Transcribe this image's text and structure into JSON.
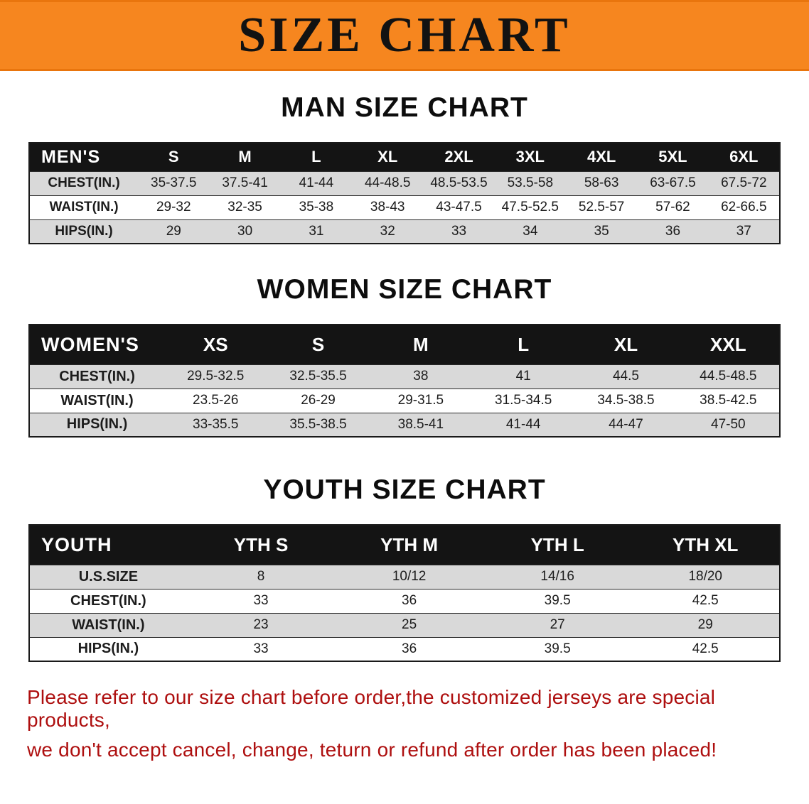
{
  "banner": {
    "title": "SIZE CHART"
  },
  "sections": {
    "men": {
      "heading": "MAN SIZE CHART",
      "table": {
        "header": [
          "MEN'S",
          "S",
          "M",
          "L",
          "XL",
          "2XL",
          "3XL",
          "4XL",
          "5XL",
          "6XL"
        ],
        "rows": [
          {
            "label": "CHEST(IN.)",
            "values": [
              "35-37.5",
              "37.5-41",
              "41-44",
              "44-48.5",
              "48.5-53.5",
              "53.5-58",
              "58-63",
              "63-67.5",
              "67.5-72"
            ]
          },
          {
            "label": "WAIST(IN.)",
            "values": [
              "29-32",
              "32-35",
              "35-38",
              "38-43",
              "43-47.5",
              "47.5-52.5",
              "52.5-57",
              "57-62",
              "62-66.5"
            ]
          },
          {
            "label": "HIPS(IN.)",
            "values": [
              "29",
              "30",
              "31",
              "32",
              "33",
              "34",
              "35",
              "36",
              "37"
            ]
          }
        ]
      }
    },
    "women": {
      "heading": "WOMEN SIZE CHART",
      "table": {
        "header": [
          "WOMEN'S",
          "XS",
          "S",
          "M",
          "L",
          "XL",
          "XXL"
        ],
        "rows": [
          {
            "label": "CHEST(IN.)",
            "values": [
              "29.5-32.5",
              "32.5-35.5",
              "38",
              "41",
              "44.5",
              "44.5-48.5"
            ]
          },
          {
            "label": "WAIST(IN.)",
            "values": [
              "23.5-26",
              "26-29",
              "29-31.5",
              "31.5-34.5",
              "34.5-38.5",
              "38.5-42.5"
            ]
          },
          {
            "label": "HIPS(IN.)",
            "values": [
              "33-35.5",
              "35.5-38.5",
              "38.5-41",
              "41-44",
              "44-47",
              "47-50"
            ]
          }
        ]
      }
    },
    "youth": {
      "heading": "YOUTH SIZE CHART",
      "table": {
        "header": [
          "YOUTH",
          "YTH S",
          "YTH M",
          "YTH L",
          "YTH XL"
        ],
        "rows": [
          {
            "label": "U.S.SIZE",
            "values": [
              "8",
              "10/12",
              "14/16",
              "18/20"
            ]
          },
          {
            "label": "CHEST(IN.)",
            "values": [
              "33",
              "36",
              "39.5",
              "42.5"
            ]
          },
          {
            "label": "WAIST(IN.)",
            "values": [
              "23",
              "25",
              "27",
              "29"
            ]
          },
          {
            "label": "HIPS(IN.)",
            "values": [
              "33",
              "36",
              "39.5",
              "42.5"
            ]
          }
        ]
      }
    }
  },
  "footer": {
    "line1": "Please refer to our size chart before order,the customized jerseys are special products,",
    "line2": "we don't accept cancel, change, teturn or refund after order has been placed!"
  },
  "colors": {
    "banner_bg": "#f6861f",
    "table_header_bg": "#141414",
    "row_stripe": "#d9d9d9",
    "footer_text": "#ae0f0f"
  }
}
